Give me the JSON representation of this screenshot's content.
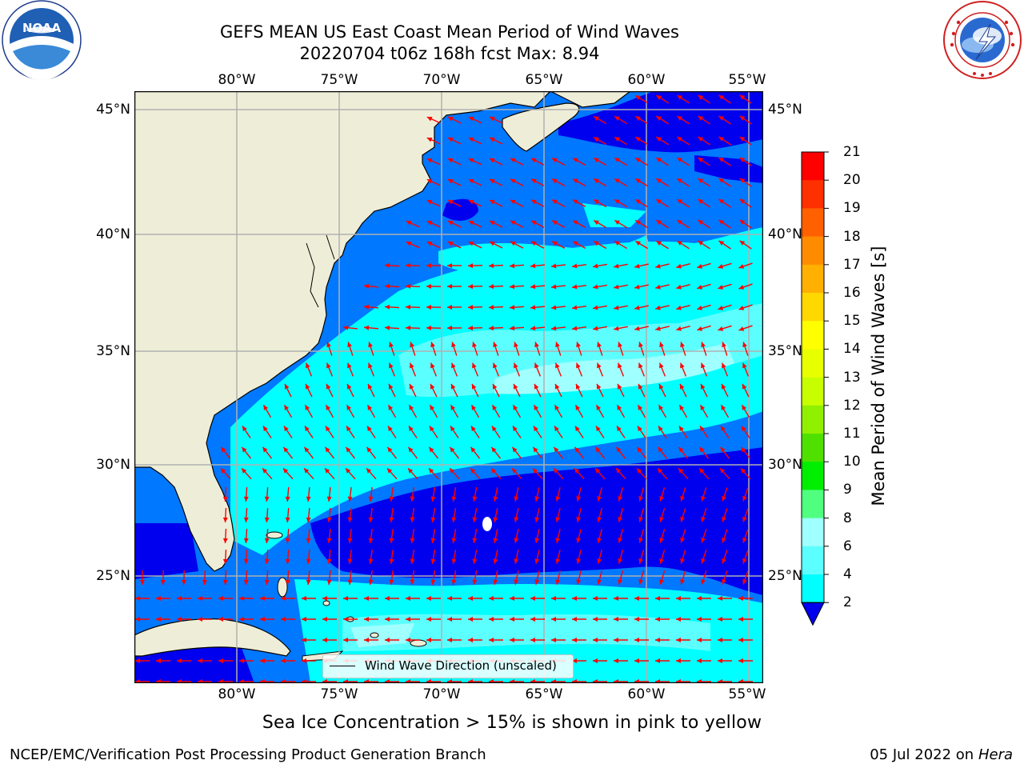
{
  "title_line1": "GEFS MEAN US East Coast Mean Period of Wind Waves",
  "title_line2": "20220704 t06z 168h fcst   Max: 8.94",
  "x_ticks": [
    "80°W",
    "75°W",
    "70°W",
    "65°W",
    "60°W",
    "55°W"
  ],
  "y_ticks": [
    "45°N",
    "40°N",
    "35°N",
    "30°N",
    "25°N"
  ],
  "colorbar": {
    "label": "Mean Period of Wind Waves [s]",
    "ticks": [
      "2",
      "4",
      "6",
      "8",
      "9",
      "10",
      "11",
      "12",
      "13",
      "14",
      "15",
      "16",
      "17",
      "18",
      "19",
      "20",
      "21"
    ],
    "colors": [
      "#0000ee",
      "#0078ff",
      "#00d8ff",
      "#00ffff",
      "#5cffff",
      "#a0ffff",
      "#60ff90",
      "#00ff00",
      "#40e000",
      "#7fe600",
      "#c0ff00",
      "#e0ff00",
      "#ffff00",
      "#ffe000",
      "#ffc000",
      "#ffa000",
      "#ff8000",
      "#ff5000",
      "#ff2000",
      "#ff0000"
    ]
  },
  "legend": {
    "label": "Wind Wave Direction (unscaled)"
  },
  "ice_note": "Sea Ice Concentration > 15% is shown in pink to yellow",
  "footer_left": "NCEP/EMC/Verification Post Processing Product Generation Branch",
  "footer_right_date": "05 Jul 2022 on ",
  "footer_right_machine": "Hera",
  "logos": {
    "left": "noaa-logo",
    "right": "nws-logo",
    "left_text": "NOAA"
  },
  "colors": {
    "land": "#eeeed8",
    "grid": "#b0b0b0",
    "arrow": "#ff0000"
  }
}
